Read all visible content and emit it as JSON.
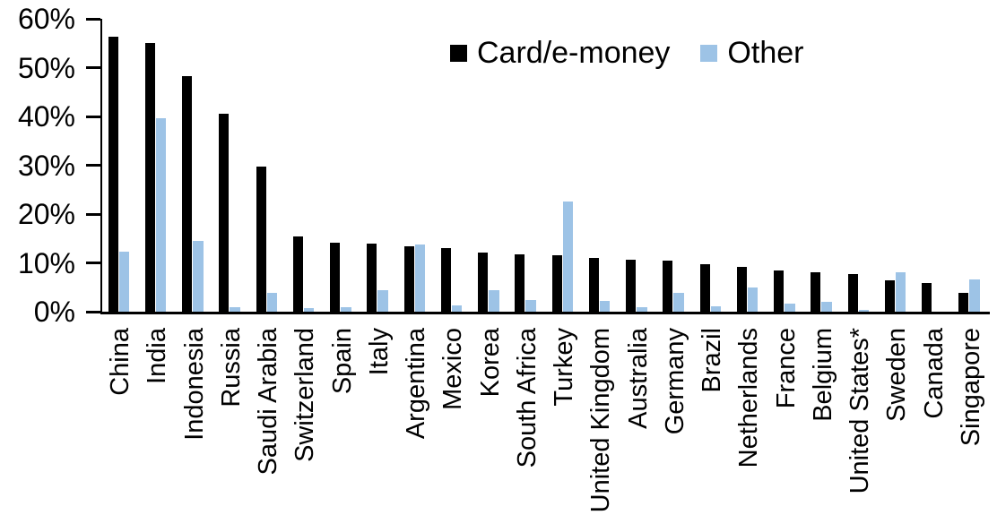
{
  "chart_data": {
    "type": "bar",
    "title": "",
    "xlabel": "",
    "ylabel": "",
    "ylim": [
      0,
      60
    ],
    "yticks": [
      "0%",
      "10%",
      "20%",
      "30%",
      "40%",
      "50%",
      "60%"
    ],
    "grid": false,
    "legend_position": "top-center",
    "categories": [
      "China",
      "India",
      "Indonesia",
      "Russia",
      "Saudi Arabia",
      "Switzerland",
      "Spain",
      "Italy",
      "Argentina",
      "Mexico",
      "Korea",
      "South Africa",
      "Turkey",
      "United Kingdom",
      "Australia",
      "Germany",
      "Brazil",
      "Netherlands",
      "France",
      "Belgium",
      "United States*",
      "Sweden",
      "Canada",
      "Singapore"
    ],
    "series": [
      {
        "name": "Card/e-money",
        "color": "#000000",
        "values": [
          56.3,
          55.1,
          48.3,
          40.5,
          29.8,
          15.5,
          14.2,
          13.9,
          13.4,
          13.0,
          12.2,
          11.8,
          11.5,
          11.0,
          10.6,
          10.5,
          9.8,
          9.1,
          8.5,
          8.0,
          7.8,
          6.4,
          5.8,
          3.9
        ]
      },
      {
        "name": "Other",
        "color": "#9DC3E6",
        "values": [
          12.3,
          39.7,
          14.5,
          1.0,
          3.8,
          0.8,
          1.0,
          4.5,
          13.8,
          1.3,
          4.5,
          2.4,
          22.5,
          2.3,
          0.9,
          3.8,
          1.1,
          4.9,
          1.6,
          2.0,
          0.3,
          8.0,
          0.0,
          6.6
        ]
      }
    ]
  }
}
